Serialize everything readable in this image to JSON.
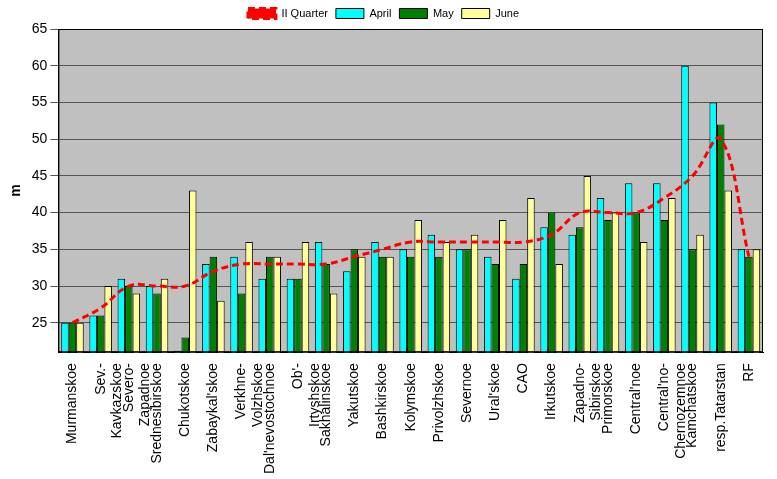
{
  "chart_data": {
    "type": "bar",
    "y_label": "m",
    "categories": [
      "Murmanskoe",
      "Sev.-Kavkazskoe",
      "Severo-Zapadnoe",
      "Srednesibirskoe",
      "Chukotskoe",
      "Zabaykal'skoe",
      "Verkhne-Volzhskoe",
      "Dal'nevostochnoe",
      "Ob'-Irtyshskoe",
      "Sakhalinskoe",
      "Yakutskoe",
      "Bashkirskoe",
      "Kolymskoe",
      "Privolzhskoe",
      "Severnoe",
      "Ural'skoe",
      "CAO",
      "Irkutskoe",
      "Zapadno-Sibirskoe",
      "Primorskoe",
      "Central'noe",
      "Central'no-Chernozemnoe",
      "Kamchatskoe",
      "resp.Tatarstan",
      "RF"
    ],
    "series": [
      {
        "name": "April",
        "color": "#00ffff",
        "values": [
          25,
          26,
          31,
          30,
          21.2,
          33,
          34,
          31,
          31,
          36,
          32,
          36,
          35,
          37,
          35,
          34,
          31,
          38,
          37,
          42,
          44,
          44,
          60,
          55,
          35
        ]
      },
      {
        "name": "May",
        "color": "#008000",
        "values": [
          25,
          26,
          30,
          29,
          23,
          34,
          29,
          34,
          31,
          33,
          35,
          34,
          34,
          34,
          35,
          33,
          33,
          40,
          38,
          39,
          40,
          39,
          35,
          52,
          34
        ]
      },
      {
        "name": "June",
        "color": "#ffff99",
        "values": [
          25,
          30,
          29,
          31,
          43,
          28,
          36,
          34,
          36,
          29,
          34,
          34,
          39,
          36,
          37,
          39,
          42,
          33,
          45,
          40,
          36,
          42,
          37,
          43,
          35
        ]
      },
      {
        "name": "II Quarter",
        "color": "#ff0000",
        "type": "line",
        "line_style": "dashed",
        "values": [
          25,
          27,
          30,
          30,
          30,
          32,
          33,
          33,
          33,
          33,
          34,
          35,
          36,
          36,
          36,
          36,
          36,
          37,
          40,
          40,
          40,
          42,
          45,
          50,
          34
        ]
      }
    ],
    "ylim": [
      21,
      65
    ],
    "yticks": [
      25,
      30,
      35,
      40,
      45,
      50,
      55,
      60,
      65
    ],
    "grid": true,
    "legend": "top"
  }
}
